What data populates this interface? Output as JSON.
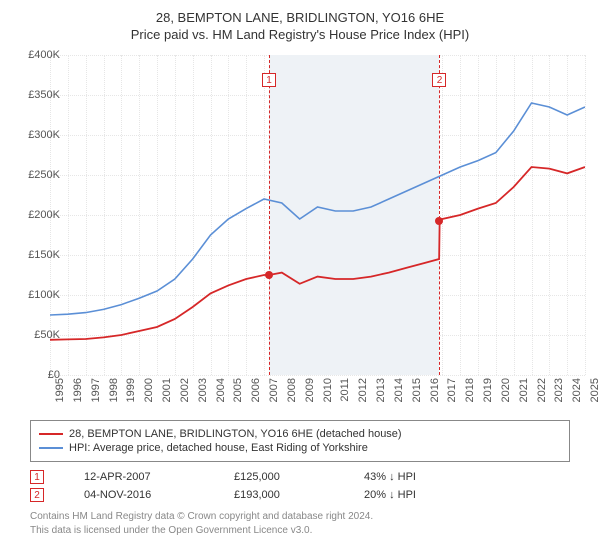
{
  "title_line1": "28, BEMPTON LANE, BRIDLINGTON, YO16 6HE",
  "title_line2": "Price paid vs. HM Land Registry's House Price Index (HPI)",
  "chart": {
    "type": "line",
    "background_color": "#ffffff",
    "grid_color": "#e6e6e6",
    "axis_fontsize": 11,
    "x": {
      "min": 1995,
      "max": 2025,
      "ticks": [
        1995,
        1996,
        1997,
        1998,
        1999,
        2000,
        2001,
        2002,
        2003,
        2004,
        2005,
        2006,
        2007,
        2008,
        2009,
        2010,
        2011,
        2012,
        2013,
        2014,
        2015,
        2016,
        2017,
        2018,
        2019,
        2020,
        2021,
        2022,
        2023,
        2024,
        2025
      ]
    },
    "y": {
      "min": 0,
      "max": 400000,
      "ticks": [
        0,
        50000,
        100000,
        150000,
        200000,
        250000,
        300000,
        350000,
        400000
      ],
      "tick_labels": [
        "£0",
        "£50K",
        "£100K",
        "£150K",
        "£200K",
        "£250K",
        "£300K",
        "£350K",
        "£400K"
      ]
    },
    "band": {
      "from": 2007.28,
      "to": 2016.84,
      "color": "#eef2f6"
    },
    "series": [
      {
        "key": "hpi",
        "label": "HPI: Average price, detached house, East Riding of Yorkshire",
        "color": "#5b8fd6",
        "line_width": 1.6,
        "points": [
          [
            1995,
            75000
          ],
          [
            1996,
            76000
          ],
          [
            1997,
            78000
          ],
          [
            1998,
            82000
          ],
          [
            1999,
            88000
          ],
          [
            2000,
            96000
          ],
          [
            2001,
            105000
          ],
          [
            2002,
            120000
          ],
          [
            2003,
            145000
          ],
          [
            2004,
            175000
          ],
          [
            2005,
            195000
          ],
          [
            2006,
            208000
          ],
          [
            2007,
            220000
          ],
          [
            2008,
            215000
          ],
          [
            2009,
            195000
          ],
          [
            2010,
            210000
          ],
          [
            2011,
            205000
          ],
          [
            2012,
            205000
          ],
          [
            2013,
            210000
          ],
          [
            2014,
            220000
          ],
          [
            2015,
            230000
          ],
          [
            2016,
            240000
          ],
          [
            2017,
            250000
          ],
          [
            2018,
            260000
          ],
          [
            2019,
            268000
          ],
          [
            2020,
            278000
          ],
          [
            2021,
            305000
          ],
          [
            2022,
            340000
          ],
          [
            2023,
            335000
          ],
          [
            2024,
            325000
          ],
          [
            2025,
            335000
          ]
        ]
      },
      {
        "key": "price",
        "label": "28, BEMPTON LANE, BRIDLINGTON, YO16 6HE (detached house)",
        "color": "#d62728",
        "line_width": 1.8,
        "points": [
          [
            1995,
            44000
          ],
          [
            1996,
            44500
          ],
          [
            1997,
            45000
          ],
          [
            1998,
            47000
          ],
          [
            1999,
            50000
          ],
          [
            2000,
            55000
          ],
          [
            2001,
            60000
          ],
          [
            2002,
            70000
          ],
          [
            2003,
            85000
          ],
          [
            2004,
            102000
          ],
          [
            2005,
            112000
          ],
          [
            2006,
            120000
          ],
          [
            2007,
            125000
          ],
          [
            2007.29,
            125000
          ],
          [
            2008,
            128000
          ],
          [
            2009,
            114000
          ],
          [
            2010,
            123000
          ],
          [
            2011,
            120000
          ],
          [
            2012,
            120000
          ],
          [
            2013,
            123000
          ],
          [
            2014,
            128000
          ],
          [
            2015,
            134000
          ],
          [
            2016,
            140000
          ],
          [
            2016.82,
            145000
          ],
          [
            2016.85,
            193000
          ],
          [
            2017,
            195000
          ],
          [
            2018,
            200000
          ],
          [
            2019,
            208000
          ],
          [
            2020,
            215000
          ],
          [
            2021,
            235000
          ],
          [
            2022,
            260000
          ],
          [
            2023,
            258000
          ],
          [
            2024,
            252000
          ],
          [
            2025,
            260000
          ]
        ]
      }
    ],
    "events": [
      {
        "n": "1",
        "x": 2007.28,
        "date": "12-APR-2007",
        "price": "£125,000",
        "delta": "43% ↓ HPI",
        "dot_y": 125000,
        "color": "#d62728"
      },
      {
        "n": "2",
        "x": 2016.84,
        "date": "04-NOV-2016",
        "price": "£193,000",
        "delta": "20% ↓ HPI",
        "dot_y": 193000,
        "color": "#d62728"
      }
    ]
  },
  "legend": {
    "rows": [
      {
        "color": "#d62728",
        "text": "28, BEMPTON LANE, BRIDLINGTON, YO16 6HE (detached house)"
      },
      {
        "color": "#5b8fd6",
        "text": "HPI: Average price, detached house, East Riding of Yorkshire"
      }
    ]
  },
  "footer": {
    "line1": "Contains HM Land Registry data © Crown copyright and database right 2024.",
    "line2": "This data is licensed under the Open Government Licence v3.0."
  }
}
